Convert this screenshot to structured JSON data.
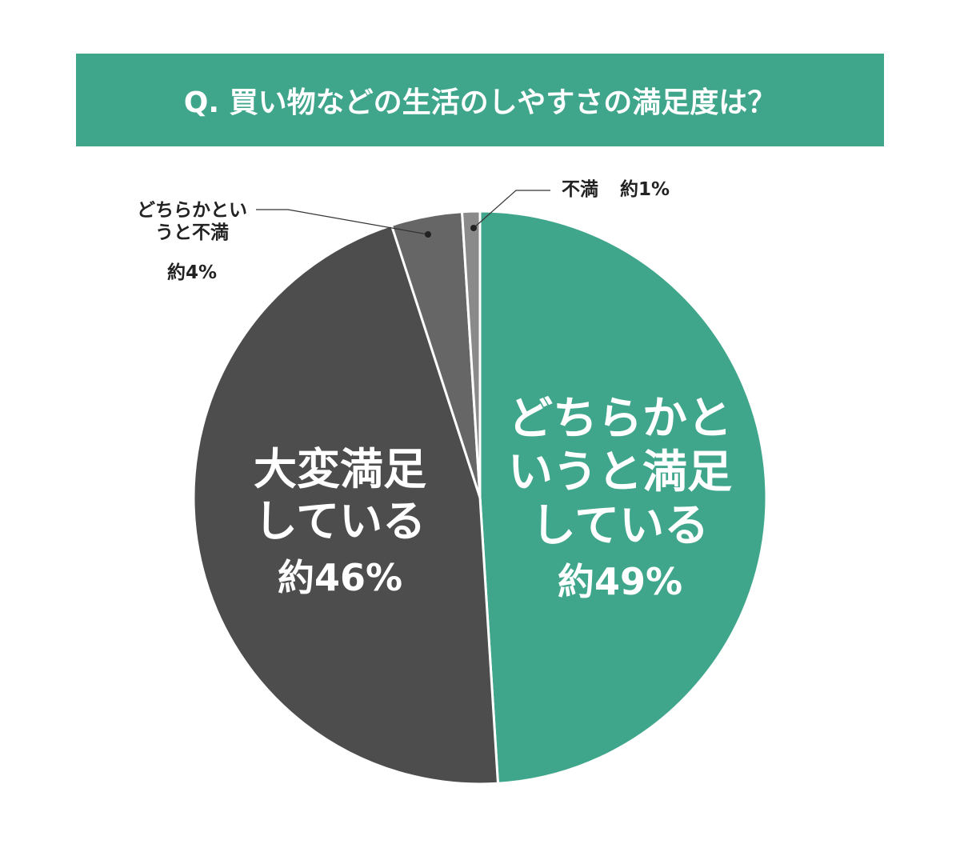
{
  "chart_data": {
    "type": "pie",
    "title": "Q. 買い物などの生活のしやすさの満足度は？",
    "categories": [
      "どちらかというと満足している",
      "大変満足している",
      "どちらかというと不満",
      "不満"
    ],
    "values": [
      49,
      46,
      4,
      1
    ],
    "value_labels": [
      "約49%",
      "約46%",
      "約4%",
      "約1%"
    ],
    "colors": [
      "#3fa68c",
      "#4d4d4d",
      "#666666",
      "#8a8a8a"
    ]
  }
}
